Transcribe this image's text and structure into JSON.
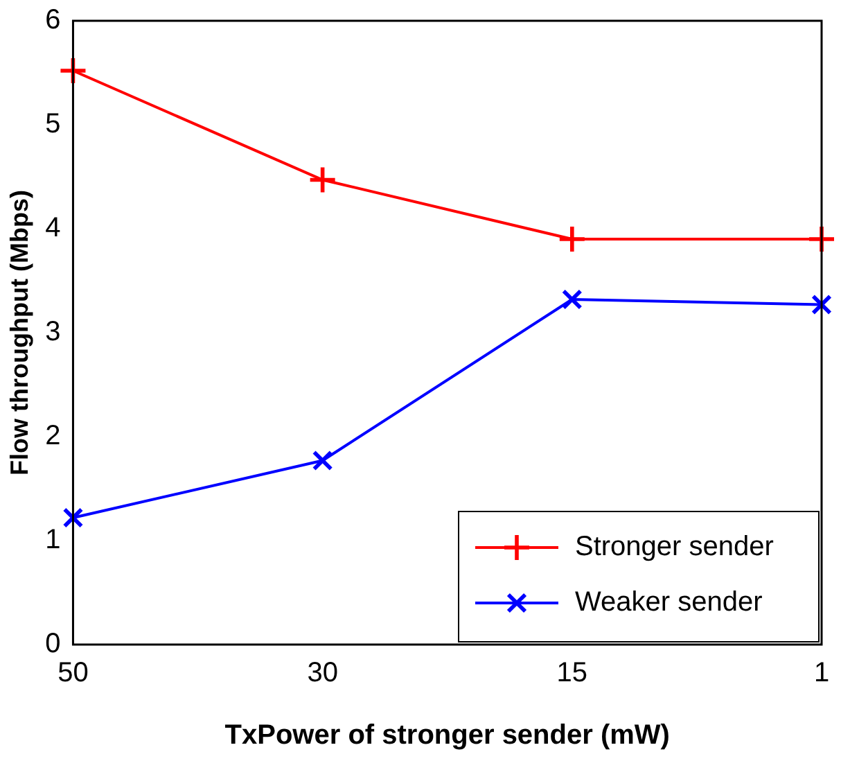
{
  "chart_data": {
    "type": "line",
    "xlabel": "TxPower of stronger sender (mW)",
    "ylabel": "Flow throughput (Mbps)",
    "categories": [
      "50",
      "30",
      "15",
      "1"
    ],
    "series": [
      {
        "name": "Stronger sender",
        "color": "#ff0000",
        "values": [
          5.52,
          4.47,
          3.9,
          3.9
        ],
        "marker": "cross"
      },
      {
        "name": "Weaker sender",
        "color": "#0000ff",
        "values": [
          1.22,
          1.77,
          3.32,
          3.27
        ],
        "marker": "x"
      }
    ],
    "ylim": [
      0,
      6
    ],
    "yticks": [
      0,
      1,
      2,
      3,
      4,
      5,
      6
    ],
    "grid": false,
    "legend": "bottom right",
    "line_style": "solid"
  }
}
